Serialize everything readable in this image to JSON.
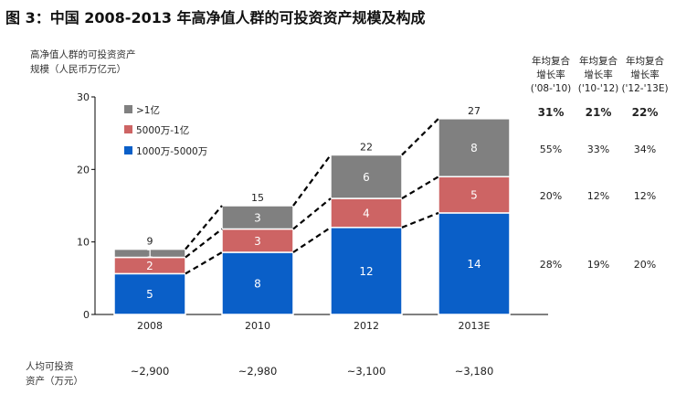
{
  "title": "图 3：中国 2008-2013 年高净值人群的可投资资产规模及构成",
  "chart_data": {
    "type": "bar",
    "stacked": true,
    "ylabel": "高净值人群的可投资资产规模（人民币万亿元）",
    "ylabel_lines": [
      "高净值人群的可投资资产",
      "规模（人民币万亿元）"
    ],
    "ylim": [
      0,
      30
    ],
    "yticks": [
      0,
      10,
      20,
      30
    ],
    "categories": [
      "2008",
      "2010",
      "2012",
      "2013E"
    ],
    "series": [
      {
        "name": "1000万-5000万",
        "color": "#0a5fc8",
        "values": [
          5,
          8,
          12,
          14
        ]
      },
      {
        "name": "5000万-1亿",
        "color": "#cd6464",
        "values": [
          2,
          3,
          4,
          5
        ]
      },
      {
        "name": ">1亿",
        "color": "#808080",
        "values": [
          1,
          3,
          6,
          8
        ]
      }
    ],
    "totals": [
      9,
      15,
      22,
      27
    ],
    "legend_position": "top-left",
    "grid": false
  },
  "cagr": {
    "headers": [
      [
        "年均复合",
        "增长率",
        "('08-'10)"
      ],
      [
        "年均复合",
        "增长率",
        "('10-'12)"
      ],
      [
        "年均复合",
        "增长率",
        "('12-'13E)"
      ]
    ],
    "total": [
      "31%",
      "21%",
      "22%"
    ],
    "above_1yi": [
      "55%",
      "33%",
      "34%"
    ],
    "mid": [
      "20%",
      "12%",
      "12%"
    ],
    "low": [
      "28%",
      "19%",
      "20%"
    ]
  },
  "per_capita": {
    "label_lines": [
      "人均可投资",
      "资产（万元）"
    ],
    "values": [
      "~2,900",
      "~2,980",
      "~3,100",
      "~3,180"
    ]
  }
}
